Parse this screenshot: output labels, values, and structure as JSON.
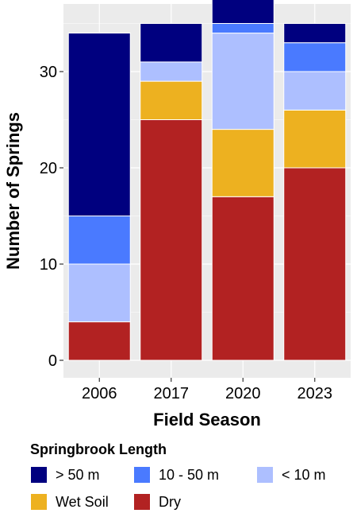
{
  "chart_data": {
    "type": "bar",
    "stacked": true,
    "title": "",
    "xlabel": "Field Season",
    "ylabel": "Number of Springs",
    "categories": [
      "2006",
      "2017",
      "2020",
      "2023"
    ],
    "ylim": [
      0,
      35
    ],
    "yticks": [
      0,
      10,
      20,
      30
    ],
    "grid": true,
    "legend_position": "bottom",
    "legend_title": "Springbrook Length",
    "series": [
      {
        "name": "Dry",
        "color": "#B22222",
        "values": [
          4,
          25,
          17,
          20
        ]
      },
      {
        "name": "Wet Soil",
        "color": "#EDB120",
        "values": [
          0,
          4,
          7,
          6
        ]
      },
      {
        "name": "< 10 m",
        "color": "#ADBFFF",
        "values": [
          6,
          2,
          10,
          4
        ]
      },
      {
        "name": "10 - 50 m",
        "color": "#4A7AFF",
        "values": [
          5,
          0,
          1,
          3
        ]
      },
      {
        "name": "> 50 m",
        "color": "#00007F",
        "values": [
          19,
          4,
          3,
          2
        ]
      }
    ],
    "legend_order": [
      "> 50 m",
      "10 - 50 m",
      "< 10 m",
      "Wet Soil",
      "Dry"
    ]
  }
}
